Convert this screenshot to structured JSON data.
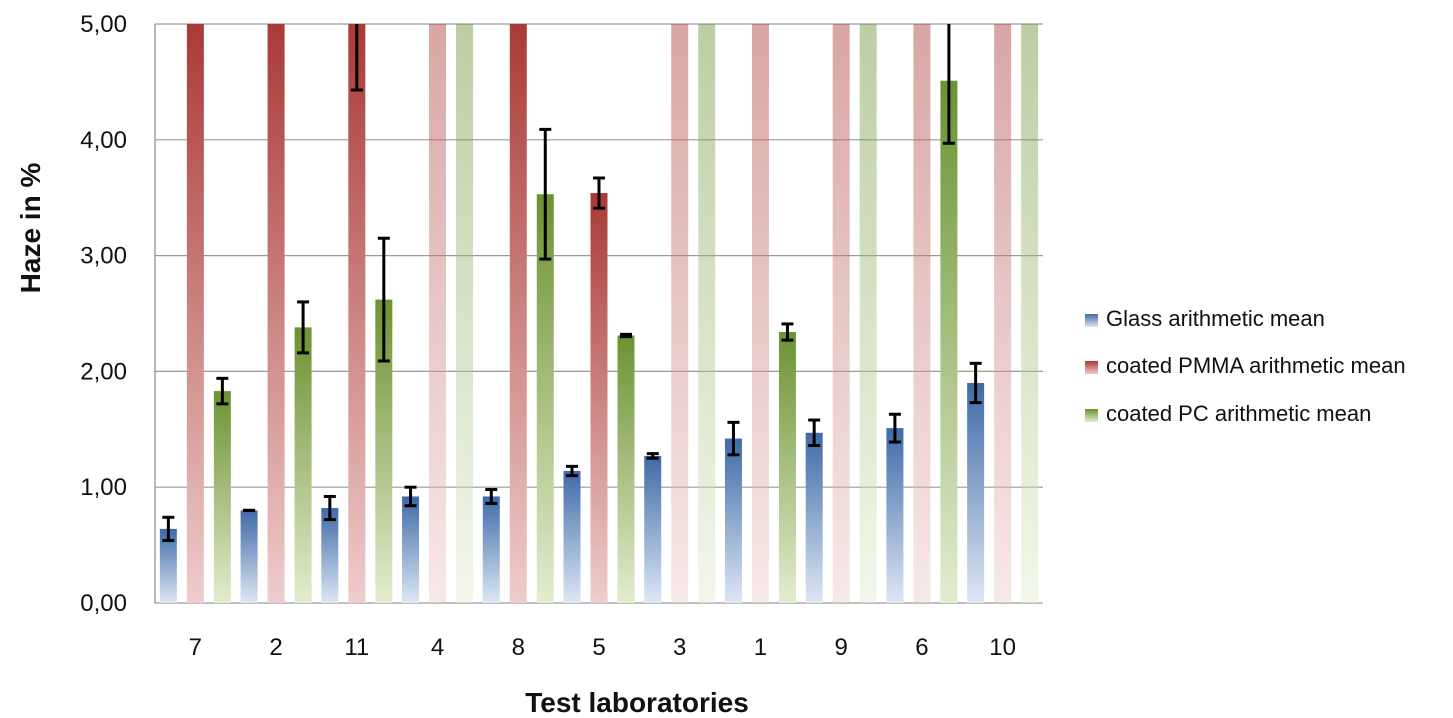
{
  "chart_data": {
    "type": "bar",
    "title": "",
    "xlabel": "Test laboratories",
    "ylabel": "Haze in %",
    "ylim": [
      0,
      5
    ],
    "yticks": [
      "0,00",
      "1,00",
      "2,00",
      "3,00",
      "4,00",
      "5,00"
    ],
    "grid": true,
    "legend_position": "right",
    "categories": [
      "7",
      "2",
      "11",
      "4",
      "8",
      "5",
      "3",
      "1",
      "9",
      "6",
      "10"
    ],
    "series": [
      {
        "name": "Glass arithmetic mean",
        "color": "#4f78b0",
        "values": [
          0.64,
          0.8,
          0.82,
          0.92,
          0.92,
          1.14,
          1.27,
          1.42,
          1.47,
          1.51,
          1.9
        ],
        "error": [
          0.1,
          0.0,
          0.1,
          0.08,
          0.06,
          0.04,
          0.02,
          0.14,
          0.11,
          0.12,
          0.17
        ]
      },
      {
        "name": "coated PMMA arithmetic mean",
        "color": "#c0504d",
        "values": [
          5.0,
          5.0,
          5.0,
          5.0,
          5.0,
          3.54,
          5.0,
          5.0,
          5.0,
          5.0,
          5.0
        ],
        "error": [
          null,
          null,
          0.57,
          null,
          null,
          0.13,
          null,
          null,
          null,
          null,
          null
        ],
        "faded": [
          false,
          false,
          false,
          true,
          false,
          false,
          true,
          true,
          true,
          true,
          true
        ]
      },
      {
        "name": "coated PC arithmetic mean",
        "color": "#7a9e3c",
        "values": [
          1.83,
          2.38,
          2.62,
          5.0,
          3.53,
          2.31,
          5.0,
          2.34,
          5.0,
          4.51,
          5.0
        ],
        "error": [
          0.11,
          0.22,
          0.53,
          null,
          0.56,
          0.01,
          null,
          0.07,
          null,
          0.54,
          null
        ],
        "faded": [
          false,
          false,
          false,
          true,
          false,
          false,
          true,
          false,
          true,
          false,
          true
        ]
      }
    ]
  }
}
